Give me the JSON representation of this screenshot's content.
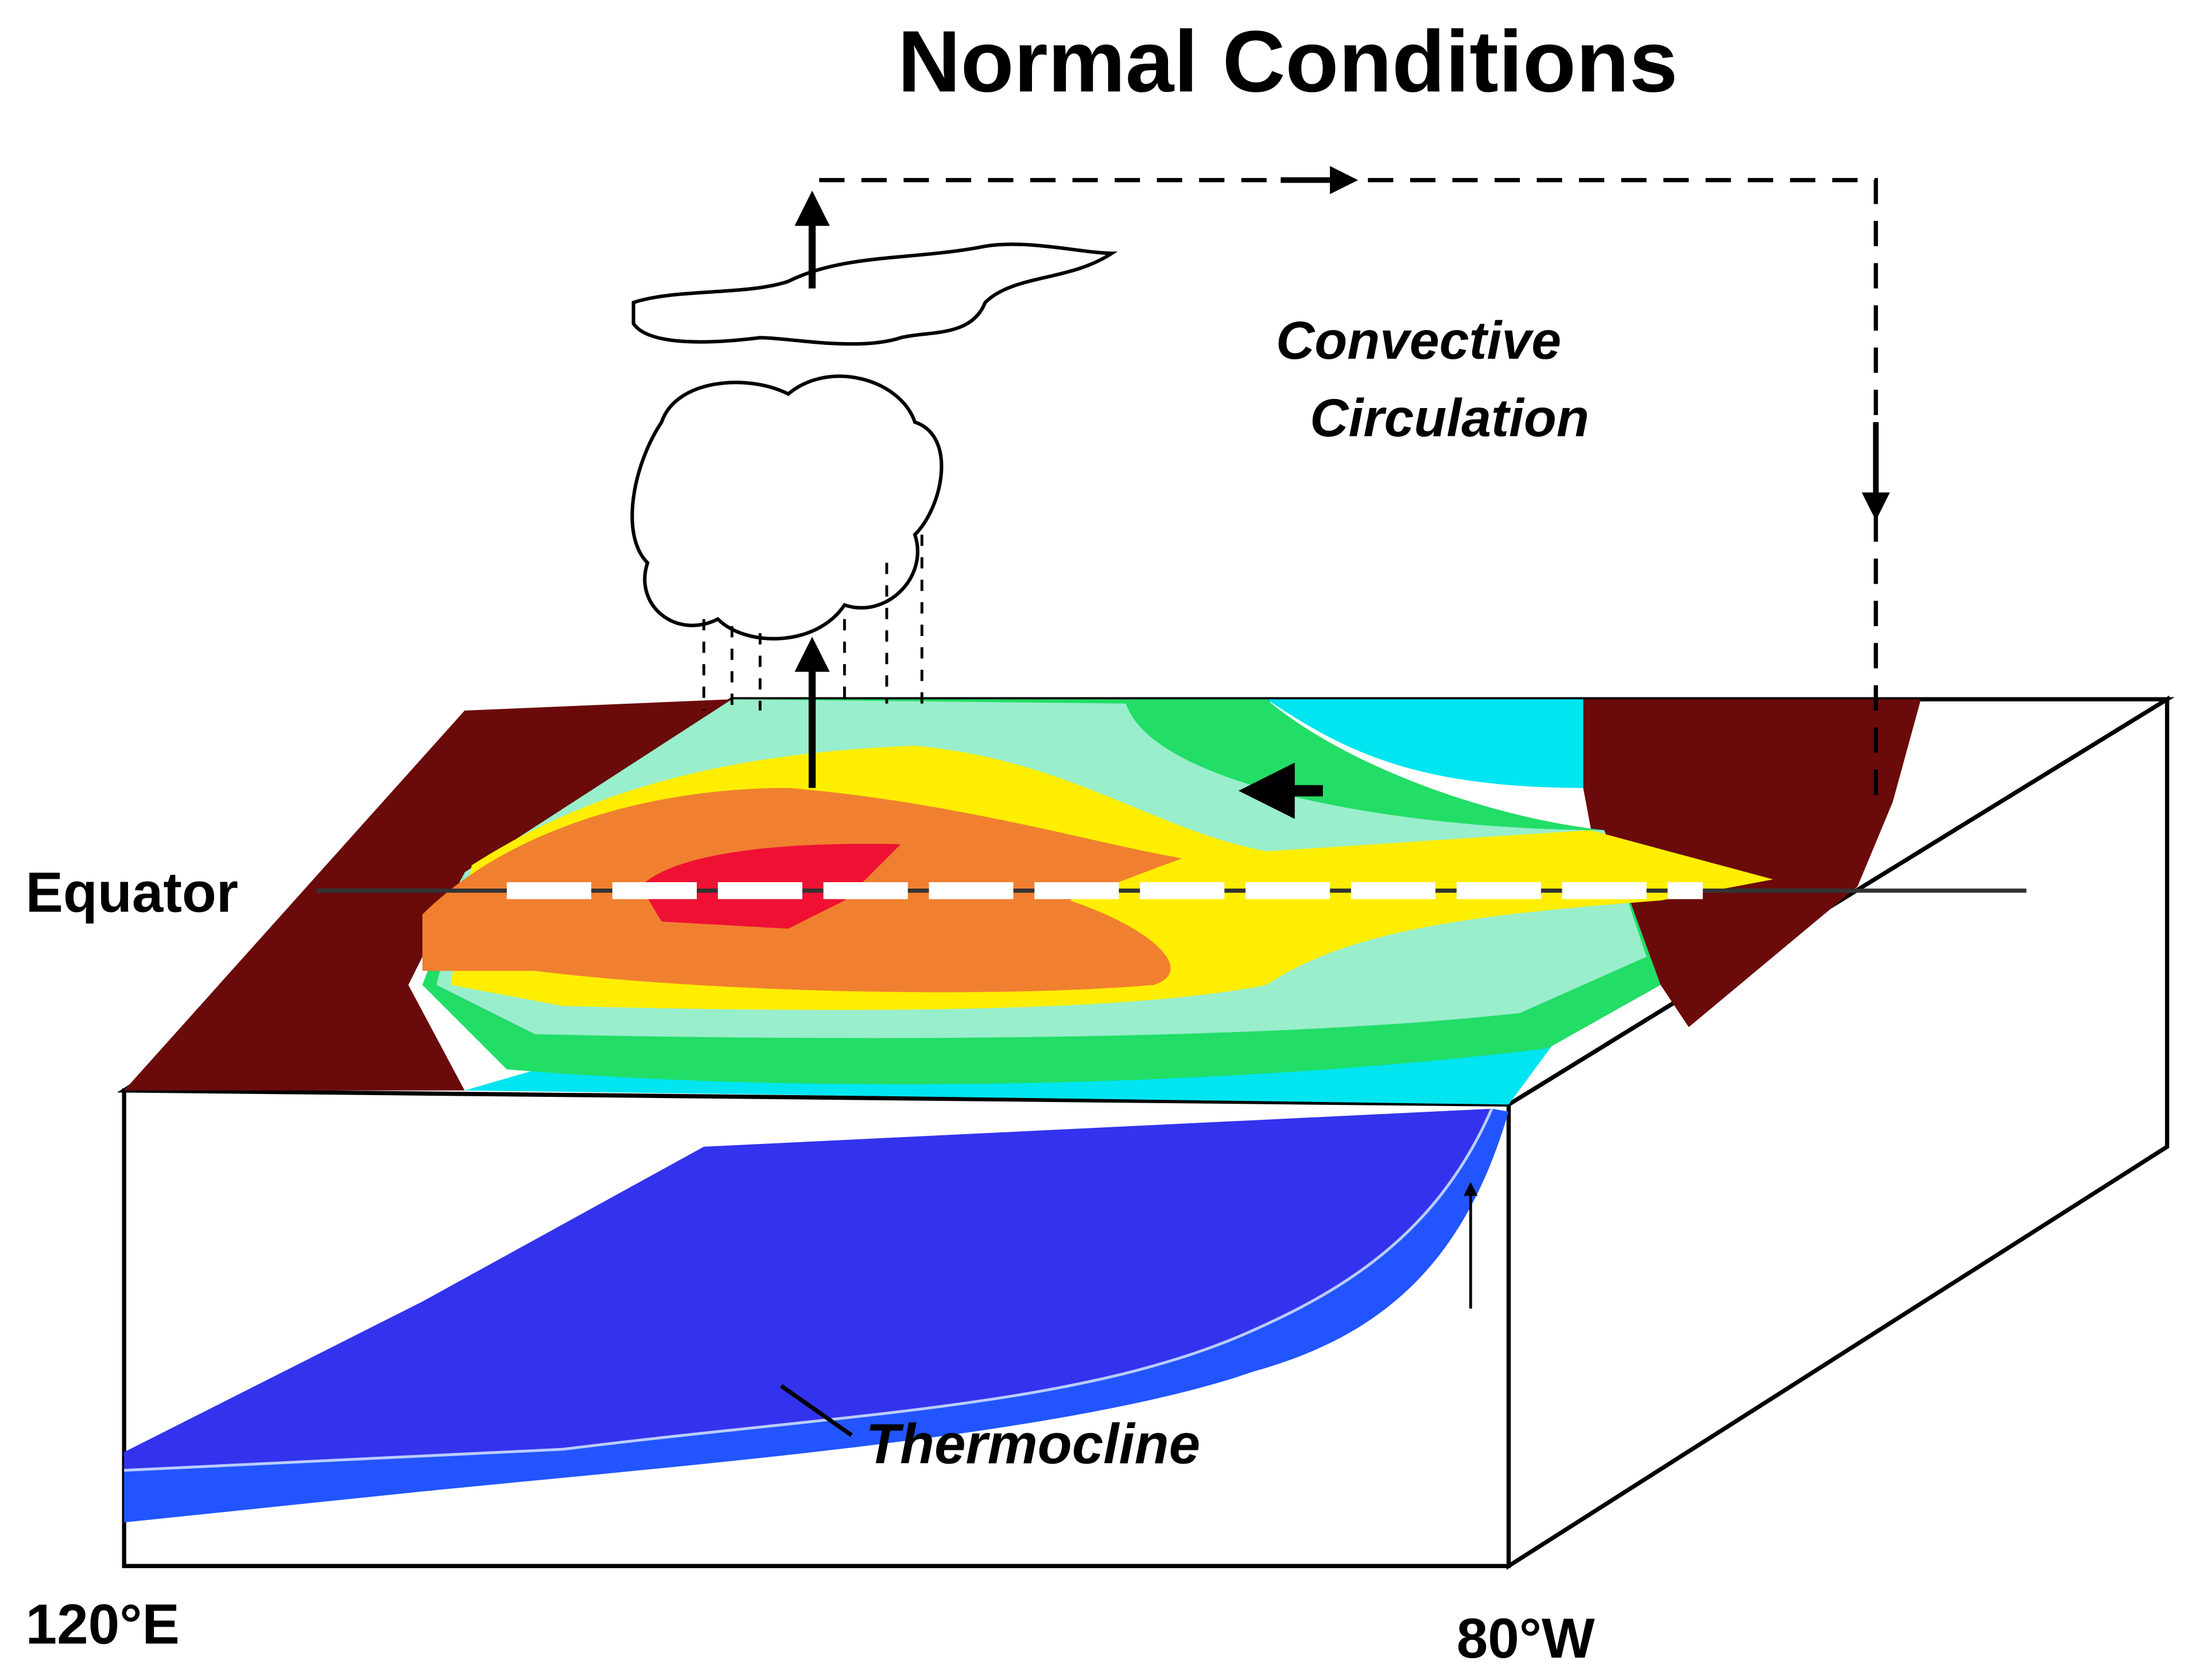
{
  "title": "Normal Conditions",
  "labels": {
    "circulation": [
      "Convective",
      "Circulation"
    ],
    "equator": "Equator",
    "thermocline": "Thermocline",
    "left_longitude": "120°E",
    "right_longitude": "80°W"
  }
}
